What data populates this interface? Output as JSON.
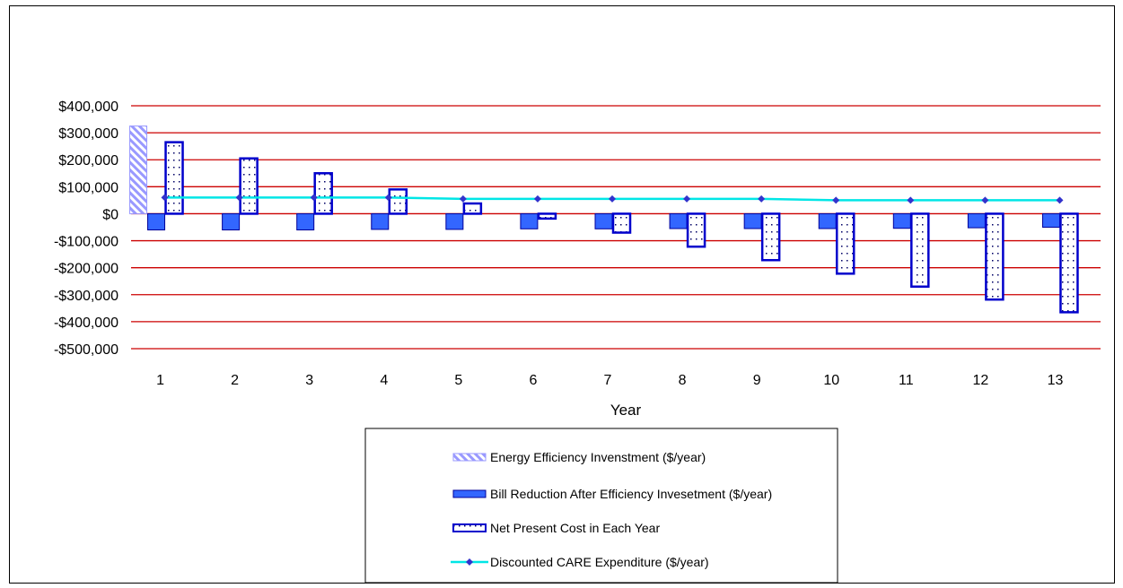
{
  "chart_data": {
    "type": "bar",
    "xlabel": "Year",
    "ylabel": "",
    "ylim": [
      -500000,
      400000
    ],
    "yticks": [
      400000,
      300000,
      200000,
      100000,
      0,
      -100000,
      -200000,
      -300000,
      -400000,
      -500000
    ],
    "ytick_labels": [
      "$400,000",
      "$300,000",
      "$200,000",
      "$100,000",
      "$0",
      "-$100,000",
      "-$200,000",
      "-$300,000",
      "-$400,000",
      "-$500,000"
    ],
    "categories": [
      "1",
      "2",
      "3",
      "4",
      "5",
      "6",
      "7",
      "8",
      "9",
      "10",
      "11",
      "12",
      "13"
    ],
    "grid": true,
    "grid_color": "#cc0000",
    "legend_position": "bottom-center",
    "series": [
      {
        "name": "Energy Efficiency Invenstment ($/year)",
        "kind": "bar",
        "style": "diagonal-hatch",
        "color": "#9999ff",
        "values": [
          325000,
          0,
          0,
          0,
          0,
          0,
          0,
          0,
          0,
          0,
          0,
          0,
          0
        ]
      },
      {
        "name": "Bill Reduction After Efficiency Invesetment ($/year)",
        "kind": "bar",
        "style": "solid",
        "color": "#3366ff",
        "values": [
          -60000,
          -60000,
          -60000,
          -58000,
          -58000,
          -56000,
          -56000,
          -55000,
          -55000,
          -55000,
          -54000,
          -52000,
          -50000
        ]
      },
      {
        "name": "Net Present Cost in Each Year",
        "kind": "bar",
        "style": "dotted",
        "color": "#0000cc",
        "values": [
          265000,
          205000,
          150000,
          90000,
          38000,
          -18000,
          -70000,
          -122000,
          -172000,
          -222000,
          -270000,
          -318000,
          -365000
        ]
      },
      {
        "name": "Discounted CARE Expenditure ($/year)",
        "kind": "line",
        "color": "#00e6e6",
        "marker_color": "#3333cc",
        "values": [
          60000,
          60000,
          60000,
          60000,
          55000,
          55000,
          55000,
          55000,
          55000,
          50000,
          50000,
          50000,
          50000
        ]
      }
    ]
  }
}
